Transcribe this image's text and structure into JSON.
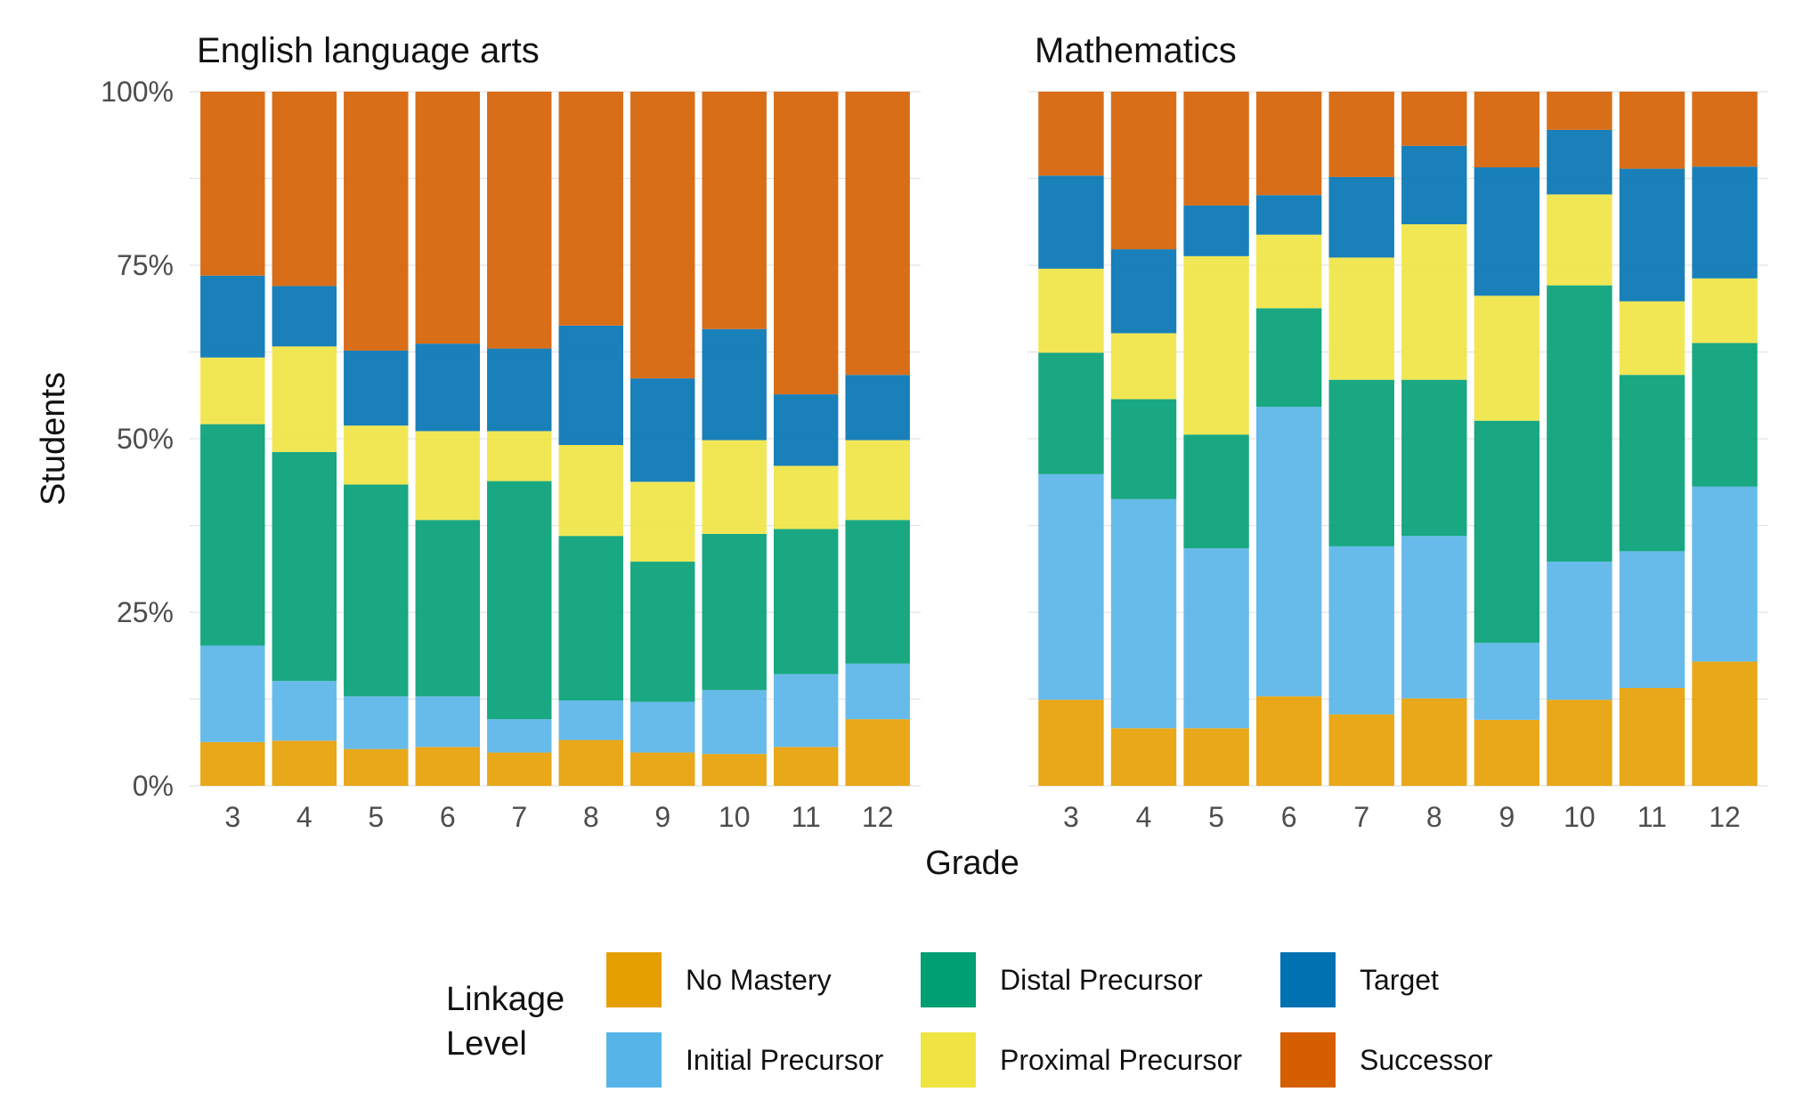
{
  "chart_data": {
    "type": "bar",
    "stacked": true,
    "xlabel": "Grade",
    "ylabel": "Students",
    "ylim": [
      0,
      100
    ],
    "yticks": [
      "0%",
      "25%",
      "50%",
      "75%",
      "100%"
    ],
    "ytick_values": [
      0,
      25,
      50,
      75,
      100
    ],
    "grid": true,
    "categories": [
      "3",
      "4",
      "5",
      "6",
      "7",
      "8",
      "9",
      "10",
      "11",
      "12"
    ],
    "legend": {
      "title": [
        "Linkage",
        "Level"
      ],
      "placement": "bottom",
      "entries": [
        "No Mastery",
        "Initial Precursor",
        "Distal Precursor",
        "Proximal Precursor",
        "Target",
        "Successor"
      ]
    },
    "colors": {
      "No Mastery": "#E69F00",
      "Initial Precursor": "#56B4E9",
      "Distal Precursor": "#009E73",
      "Proximal Precursor": "#F0E442",
      "Target": "#0072B2",
      "Successor": "#D55E00"
    },
    "panels": [
      {
        "title": "English language arts",
        "series": [
          {
            "name": "No Mastery",
            "values": [
              6.3,
              6.5,
              5.3,
              5.6,
              4.8,
              6.6,
              4.8,
              4.6,
              5.6,
              9.6
            ]
          },
          {
            "name": "Initial Precursor",
            "values": [
              13.9,
              8.6,
              7.6,
              7.3,
              4.8,
              5.7,
              7.3,
              9.2,
              10.5,
              8.0
            ]
          },
          {
            "name": "Distal Precursor",
            "values": [
              31.9,
              33.0,
              30.5,
              25.4,
              34.3,
              23.7,
              20.2,
              22.5,
              20.9,
              20.7
            ]
          },
          {
            "name": "Proximal Precursor",
            "values": [
              9.6,
              15.2,
              8.5,
              12.8,
              7.2,
              13.1,
              11.5,
              13.5,
              9.1,
              11.5
            ]
          },
          {
            "name": "Target",
            "values": [
              11.8,
              8.7,
              10.8,
              12.6,
              11.9,
              17.2,
              14.9,
              16.0,
              10.3,
              9.4
            ]
          },
          {
            "name": "Successor",
            "values": [
              26.5,
              28.0,
              37.3,
              36.3,
              37.0,
              33.7,
              41.3,
              34.2,
              43.6,
              40.8
            ]
          }
        ]
      },
      {
        "title": "Mathematics",
        "series": [
          {
            "name": "No Mastery",
            "values": [
              12.4,
              8.3,
              8.3,
              12.9,
              10.3,
              12.6,
              9.5,
              12.4,
              14.1,
              17.9
            ]
          },
          {
            "name": "Initial Precursor",
            "values": [
              32.5,
              33.0,
              25.9,
              41.7,
              24.2,
              23.4,
              11.1,
              19.9,
              19.7,
              25.2
            ]
          },
          {
            "name": "Distal Precursor",
            "values": [
              17.5,
              14.4,
              16.4,
              14.2,
              24.0,
              22.5,
              32.0,
              39.8,
              25.4,
              20.7
            ]
          },
          {
            "name": "Proximal Precursor",
            "values": [
              12.1,
              9.5,
              25.7,
              10.6,
              17.6,
              22.4,
              18.0,
              13.1,
              10.6,
              9.3
            ]
          },
          {
            "name": "Target",
            "values": [
              13.4,
              12.1,
              7.3,
              5.7,
              11.6,
              11.3,
              18.5,
              9.3,
              19.1,
              16.1
            ]
          },
          {
            "name": "Successor",
            "values": [
              12.1,
              22.7,
              16.4,
              14.9,
              12.3,
              7.8,
              10.9,
              5.5,
              11.1,
              10.8
            ]
          }
        ]
      }
    ]
  }
}
